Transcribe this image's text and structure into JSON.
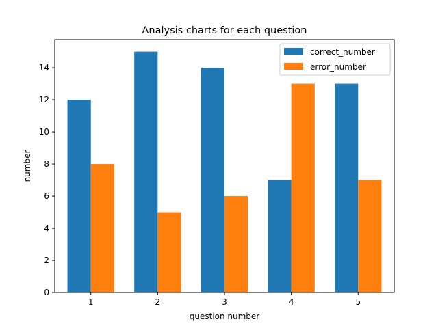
{
  "chart_data": {
    "type": "bar",
    "title": "Analysis charts for each question",
    "xlabel": "question number",
    "ylabel": "number",
    "categories": [
      "1",
      "2",
      "3",
      "4",
      "5"
    ],
    "series": [
      {
        "name": "correct_number",
        "color": "#1f77b4",
        "values": [
          12,
          15,
          14,
          7,
          13
        ]
      },
      {
        "name": "error_number",
        "color": "#ff7f0e",
        "values": [
          8,
          5,
          6,
          13,
          7
        ]
      }
    ],
    "ylim": [
      0,
      15.75
    ],
    "yticks": [
      0,
      2,
      4,
      6,
      8,
      10,
      12,
      14
    ],
    "grid": false,
    "legend_position": "top-right"
  }
}
